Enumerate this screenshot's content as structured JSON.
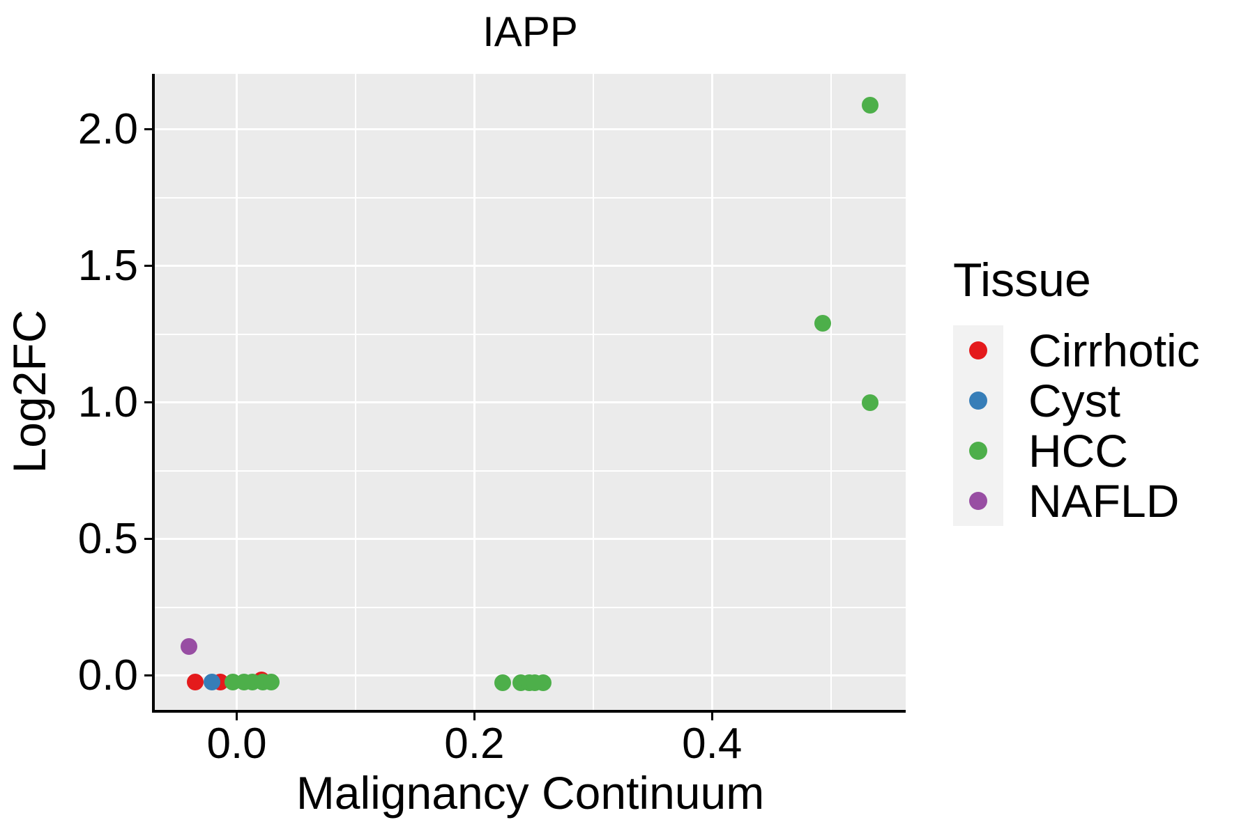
{
  "chart_data": {
    "type": "scatter",
    "title": "IAPP",
    "xlabel": "Malignancy Continuum",
    "ylabel": "Log2FC",
    "xlim": [
      -0.069,
      0.563
    ],
    "ylim": [
      -0.125,
      2.204
    ],
    "x_ticks": [
      0.0,
      0.2,
      0.4
    ],
    "x_tick_labels": [
      "0.0",
      "0.2",
      "0.4"
    ],
    "x_minor_ticks": [
      0.1,
      0.3,
      0.5
    ],
    "y_ticks": [
      0.0,
      0.5,
      1.0,
      1.5,
      2.0
    ],
    "y_tick_labels": [
      "0.0",
      "0.5",
      "1.0",
      "1.5",
      "2.0"
    ],
    "y_minor_ticks": [
      0.25,
      0.75,
      1.25,
      1.75
    ],
    "grid": "on",
    "panel_bg": "#EBEBEB",
    "grid_color": "#FFFFFF",
    "marker_diameter_px": 24,
    "legend_position": "right",
    "series": [
      {
        "name": "Cirrhotic",
        "color": "#E41A1C",
        "points": [
          [
            -0.035,
            -0.023
          ],
          [
            -0.014,
            -0.023
          ],
          [
            0.021,
            -0.015
          ]
        ]
      },
      {
        "name": "Cyst",
        "color": "#377EB8",
        "points": [
          [
            -0.021,
            -0.023
          ]
        ]
      },
      {
        "name": "HCC",
        "color": "#4DAF4A",
        "points": [
          [
            -0.003,
            -0.023
          ],
          [
            0.006,
            -0.023
          ],
          [
            0.013,
            -0.023
          ],
          [
            0.022,
            -0.023
          ],
          [
            0.029,
            -0.023
          ],
          [
            0.224,
            -0.026
          ],
          [
            0.239,
            -0.026
          ],
          [
            0.246,
            -0.026
          ],
          [
            0.251,
            -0.026
          ],
          [
            0.258,
            -0.026
          ],
          [
            0.493,
            1.29
          ],
          [
            0.533,
            1.0
          ],
          [
            0.533,
            2.09
          ]
        ]
      },
      {
        "name": "NAFLD",
        "color": "#984EA3",
        "points": [
          [
            -0.04,
            0.108
          ]
        ]
      }
    ]
  },
  "legend": {
    "title": "Tissue",
    "items": [
      {
        "label": "Cirrhotic",
        "color": "#E41A1C"
      },
      {
        "label": "Cyst",
        "color": "#377EB8"
      },
      {
        "label": "HCC",
        "color": "#4DAF4A"
      },
      {
        "label": "NAFLD",
        "color": "#984EA3"
      }
    ]
  }
}
